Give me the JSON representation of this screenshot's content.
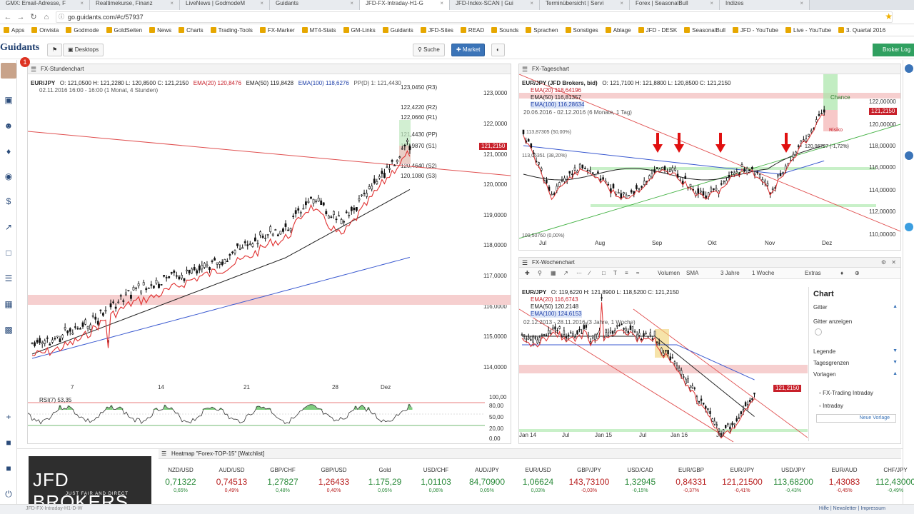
{
  "browser": {
    "tabs": [
      {
        "title": "GMX: Email-Adresse, F"
      },
      {
        "title": "Realtimekurse, Finanz"
      },
      {
        "title": "LiveNews | GodmodeM"
      },
      {
        "title": "Guidants"
      },
      {
        "title": "JFD-FX-Intraday-H1-G",
        "active": true
      },
      {
        "title": "JFD-Index-SCAN | Gui"
      },
      {
        "title": "Terminübersicht | Servi"
      },
      {
        "title": "Forex | SeasonalBull"
      },
      {
        "title": "Indizes"
      }
    ],
    "url": "go.guidants.com/#c/57937",
    "bookmarks": [
      "Apps",
      "Onvista",
      "Godmode",
      "GoldSeiten",
      "News",
      "Charts",
      "Trading-Tools",
      "FX-Marker",
      "MT4-Stats",
      "GM-Links",
      "Guidants",
      "JFD-Sites",
      "READ",
      "Sounds",
      "Sprachen",
      "Sonstiges",
      "Ablage",
      "JFD - DESK",
      "SeasonalBull",
      "JFD - YouTube",
      "Live - YouTube",
      "3. Quartal 2016"
    ]
  },
  "app": {
    "logo": "Guidants",
    "badge": "1",
    "desktops": "Desktops",
    "search": "Suche",
    "market": "Market",
    "broker": "Broker Log"
  },
  "panels": {
    "hourly": {
      "title": "FX-Stundenchart",
      "symbol": "EUR/JPY",
      "ohlc": "O: 121,0500  H: 121,2280  L: 120,8500  C: 121,2150",
      "ema20": "EMA(20) 120,8476",
      "ema50": "EMA(50) 119,8428",
      "ema100": "EMA(100) 118,6276",
      "pp": "PP(D) 1: 121,4430",
      "range": "02.11.2016 16:00 - 16:00  (1 Monat, 4 Stunden)",
      "pivots": [
        "123,0450 (R3)",
        "122,4220 (R2)",
        "122,0660 (R1)",
        "121,4430 (PP)",
        "120,9870 (S1)",
        "120,4640 (S2)",
        "120,1080 (S3)"
      ],
      "price": "121,2150",
      "y_ticks": [
        "123,0000",
        "122,0000",
        "121,0000",
        "120,0000",
        "119,0000",
        "118,0000",
        "117,0000",
        "116,0000",
        "115,0000",
        "114,0000"
      ],
      "x_ticks": [
        "7",
        "14",
        "21",
        "28",
        "Dez"
      ],
      "rsi_label": "RSI(7) 53,35",
      "rsi_ticks": [
        "100,00",
        "80,00",
        "50,00",
        "20,00",
        "0,00"
      ]
    },
    "daily": {
      "title": "FX-Tageschart",
      "symbol": "EUR/JPY (JFD Brokers, bid)",
      "ohlc": "O: 121,7100  H: 121,8800  L: 120,8500  C: 121,2150",
      "ema20": "EMA(20) 118,64196",
      "ema50": "EMA(50) 116,81357",
      "ema100": "EMA(100) 116,28634",
      "range": "20.06.2016 - 02.12.2016  (6 Monate, 1 Tag)",
      "fib": "113,87305 (50,00%)",
      "fib2": "113,06351 (38,20%)",
      "fib3": "109,50760 (0,00%)",
      "chance": "Chance",
      "risiko": "Risiko",
      "level": "120,06727 (-1,72%)",
      "price": "121,2150",
      "y_ticks": [
        "122,00000",
        "120,00000",
        "118,00000",
        "116,00000",
        "114,00000",
        "112,00000",
        "110,00000"
      ],
      "x_ticks": [
        "Jul",
        "Aug",
        "Sep",
        "Okt",
        "Nov",
        "Dez"
      ]
    },
    "weekly": {
      "title": "FX-Wochenchart",
      "toolbar": [
        "Volumen",
        "SMA",
        "3 Jahre",
        "1 Woche",
        "Extras"
      ],
      "symbol": "EUR/JPY",
      "ohlc": "O: 119,6220  H: 121,8900  L: 118,5200  C: 121,2150",
      "ema20": "EMA(20) 116,6743",
      "ema50": "EMA(50) 120,2148",
      "ema100": "EMA(100) 124,6153",
      "range": "02.12.2013 - 28.11.2016  (3 Jahre, 1 Woche)",
      "price": "121,2150",
      "y_ticks": [
        "150,0000",
        "140,0000",
        "130,0000",
        "120,0000",
        "110,0000"
      ],
      "x_ticks": [
        "Jan 14",
        "Jul",
        "Jan 15",
        "Jul",
        "Jan 16",
        "Jul"
      ],
      "menu": {
        "title": "Chart",
        "gitter": "Gitter",
        "gitter_anzeigen": "Gitter anzeigen",
        "legende": "Legende",
        "tagesgrenzen": "Tagesgrenzen",
        "vorlagen": "Vorlagen",
        "templates": [
          "FX-Trading Intraday",
          "Intraday"
        ],
        "new_template": "Neue Vorlage"
      }
    }
  },
  "heatmap": {
    "title": "Heatmap \"Forex-TOP-15\" [Watchlist]",
    "brand_big": "JFD BROKERS",
    "brand_small": "JUST FAIR AND DIRECT",
    "items": [
      {
        "name": "NZD/USD",
        "value": "0,71322",
        "change": "0,65%",
        "up": true
      },
      {
        "name": "AUD/USD",
        "value": "0,74513",
        "change": "0,49%",
        "up": false
      },
      {
        "name": "GBP/CHF",
        "value": "1,27827",
        "change": "0,48%",
        "up": true
      },
      {
        "name": "GBP/USD",
        "value": "1,26433",
        "change": "0,40%",
        "up": false
      },
      {
        "name": "Gold",
        "value": "1.175,29",
        "change": "0,05%",
        "up": true
      },
      {
        "name": "USD/CHF",
        "value": "1,01103",
        "change": "0,06%",
        "up": true
      },
      {
        "name": "AUD/JPY",
        "value": "84,70900",
        "change": "0,05%",
        "up": true
      },
      {
        "name": "EUR/USD",
        "value": "1,06624",
        "change": "0,03%",
        "up": true
      },
      {
        "name": "GBP/JPY",
        "value": "143,73100",
        "change": "-0,03%",
        "up": false
      },
      {
        "name": "USD/CAD",
        "value": "1,32945",
        "change": "-0,15%",
        "up": true
      },
      {
        "name": "EUR/GBP",
        "value": "0,84331",
        "change": "-0,37%",
        "up": false
      },
      {
        "name": "EUR/JPY",
        "value": "121,21500",
        "change": "-0,41%",
        "up": false
      },
      {
        "name": "USD/JPY",
        "value": "113,68200",
        "change": "-0,43%",
        "up": true
      },
      {
        "name": "EUR/AUD",
        "value": "1,43083",
        "change": "-0,45%",
        "up": false
      },
      {
        "name": "CHF/JPY",
        "value": "112,43000",
        "change": "-0,49%",
        "up": true
      }
    ]
  },
  "status": {
    "left": "JFD-FX-Intraday-H1-D-W",
    "links": "Hilfe  |  Newsletter  |  Impressum"
  }
}
